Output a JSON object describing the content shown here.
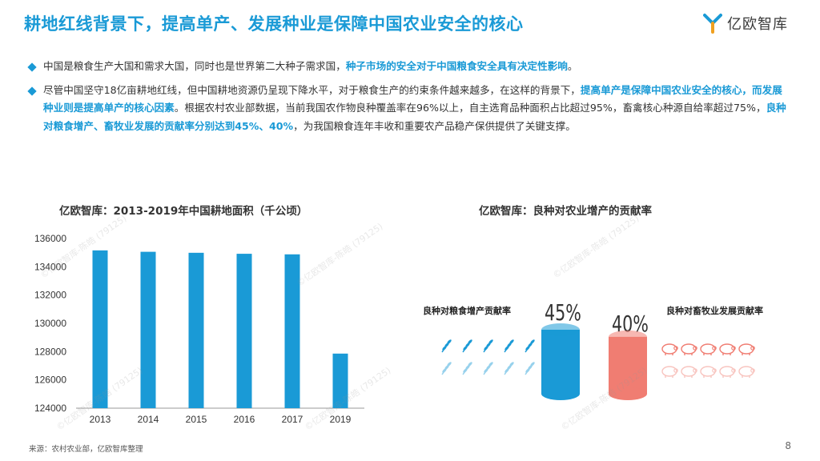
{
  "header": {
    "title": "耕地红线背景下，提高单产、发展种业是保障中国农业安全的核心",
    "logo_text": "亿欧智库"
  },
  "bullets": [
    {
      "segments": [
        {
          "text": "中国是粮食生产大国和需求大国，同时也是世界第二大种子需求国，",
          "hl": false
        },
        {
          "text": "种子市场的安全对于中国粮食安全具有决定性影响",
          "hl": true
        },
        {
          "text": "。",
          "hl": false
        }
      ]
    },
    {
      "segments": [
        {
          "text": "尽管中国坚守18亿亩耕地红线，但中国耕地资源仍呈现下降水平，对于粮食生产的约束条件越来越多，在这样的背景下，",
          "hl": false
        },
        {
          "text": "提高单产是保障中国农业安全的核心，而发展种业则是提高单产的核心因素",
          "hl": true
        },
        {
          "text": "。根据农村农业部数据，当前我国农作物良种覆盖率在96%以上，自主选育品种面积占比超过95%，畜禽核心种源自给率超过75%，",
          "hl": false
        },
        {
          "text": "良种对粮食增产、畜牧业发展的贡献率分别达到45%、40%",
          "hl": true
        },
        {
          "text": "，为我国粮食连年丰收和重要农产品稳产保供提供了关键支撑。",
          "hl": false
        }
      ]
    }
  ],
  "chart_data": [
    {
      "type": "bar",
      "title": "亿欧智库：2013-2019年中国耕地面积（千公顷）",
      "categories": [
        "2013",
        "2014",
        "2015",
        "2016",
        "2017",
        "2019"
      ],
      "values": [
        135160,
        135060,
        134990,
        134920,
        134880,
        127860
      ],
      "ylim": [
        124000,
        136000
      ],
      "yticks": [
        124000,
        126000,
        128000,
        130000,
        132000,
        134000,
        136000
      ],
      "color": "#1a9ad6",
      "grid": false
    },
    {
      "type": "bar",
      "title": "亿欧智库：良种对农业增产的贡献率",
      "categories": [
        "良种对粮食增产贡献率",
        "良种对畜牧业发展贡献率"
      ],
      "values": [
        45,
        40
      ],
      "labels": [
        "45%",
        "40%"
      ],
      "colors": [
        "#1a9ad6",
        "#f07d72"
      ]
    }
  ],
  "footer": {
    "source": "来源：农村农业部，亿欧智库整理",
    "page": "8"
  },
  "watermark": "©亿欧智库-陈皓 (79125)"
}
